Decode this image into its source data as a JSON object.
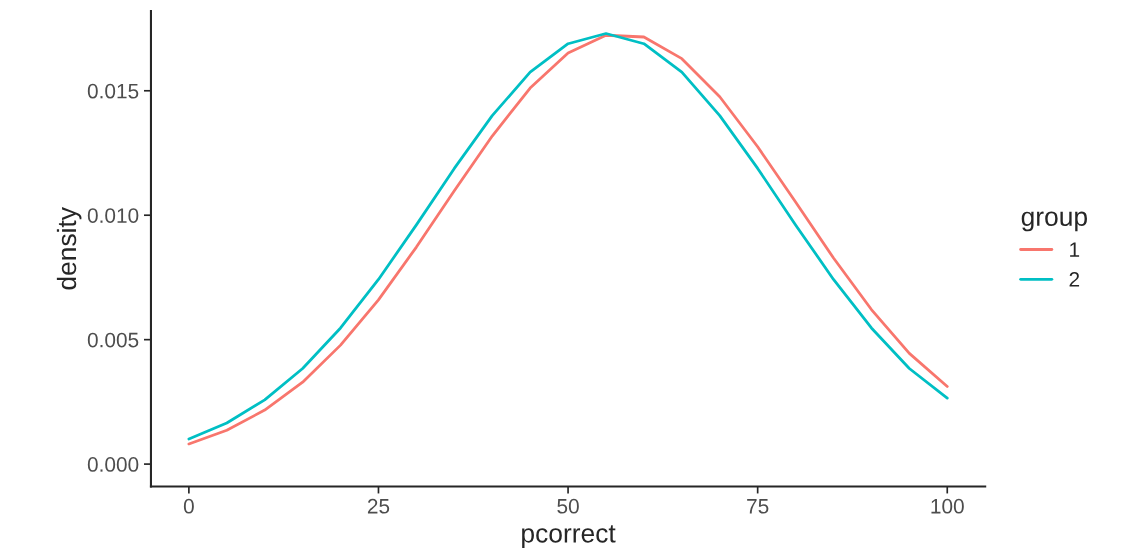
{
  "chart_data": {
    "type": "line",
    "xlabel": "pcorrect",
    "ylabel": "density",
    "legend_title": "group",
    "x": [
      0,
      5,
      10,
      15,
      20,
      25,
      30,
      35,
      40,
      45,
      50,
      55,
      60,
      65,
      70,
      75,
      80,
      85,
      90,
      95,
      100
    ],
    "series": [
      {
        "name": "1",
        "color": "#f8766d",
        "values": [
          0.00081,
          0.00136,
          0.00217,
          0.00329,
          0.00478,
          0.0066,
          0.00872,
          0.01098,
          0.01318,
          0.01511,
          0.01652,
          0.01723,
          0.01716,
          0.01629,
          0.01476,
          0.01275,
          0.01053,
          0.00828,
          0.00621,
          0.00445,
          0.00312
        ]
      },
      {
        "name": "2",
        "color": "#00bfc4",
        "values": [
          0.00101,
          0.00165,
          0.00258,
          0.00384,
          0.00547,
          0.00742,
          0.00961,
          0.01188,
          0.014,
          0.01575,
          0.01689,
          0.0173,
          0.01689,
          0.01575,
          0.014,
          0.01188,
          0.00961,
          0.00742,
          0.00547,
          0.00384,
          0.00265
        ]
      }
    ],
    "xlim": [
      -5,
      105
    ],
    "ylim": [
      -0.0009,
      0.0182
    ],
    "xticks": [
      0,
      25,
      50,
      75,
      100
    ],
    "yticks": [
      {
        "value": 0,
        "label": "0.000"
      },
      {
        "value": 0.005,
        "label": "0.005"
      },
      {
        "value": 0.01,
        "label": "0.010"
      },
      {
        "value": 0.015,
        "label": "0.015"
      }
    ],
    "grid": false,
    "legend": "right",
    "line_style": "solid",
    "marker": "none"
  }
}
